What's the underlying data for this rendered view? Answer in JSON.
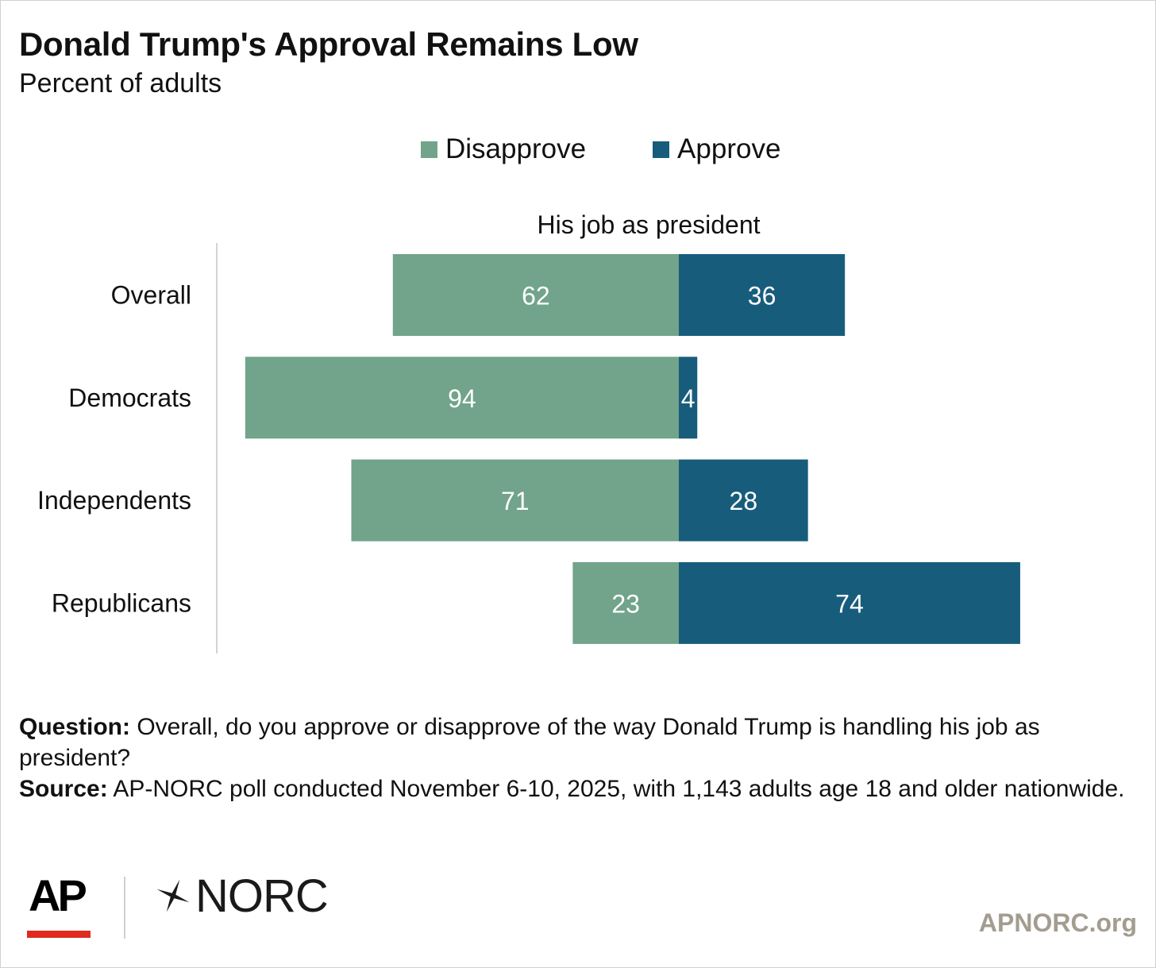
{
  "title": "Donald Trump's Approval Remains Low",
  "subtitle": "Percent of adults",
  "chart_data": {
    "type": "bar",
    "orientation": "horizontal-diverging",
    "column_header": "His job as president",
    "categories": [
      "Overall",
      "Democrats",
      "Independents",
      "Republicans"
    ],
    "series": [
      {
        "name": "Disapprove",
        "values": [
          62,
          94,
          71,
          23
        ],
        "color": "#71a48a"
      },
      {
        "name": "Approve",
        "values": [
          36,
          4,
          28,
          74
        ],
        "color": "#185c7c"
      }
    ],
    "legend_placement": "top-center",
    "grid": false
  },
  "footnote": {
    "question_label": "Question:",
    "question_text": " Overall, do you approve or disapprove of the way Donald Trump is handling his job as president?",
    "source_label": "Source:",
    "source_text": " AP-NORC poll conducted November 6-10, 2025, with 1,143 adults age 18 and older nationwide."
  },
  "logos": {
    "ap": "AP",
    "norc": "NORC",
    "site": "APNORC.org",
    "ap_red": "#e0291f",
    "site_color": "#a39d90"
  }
}
